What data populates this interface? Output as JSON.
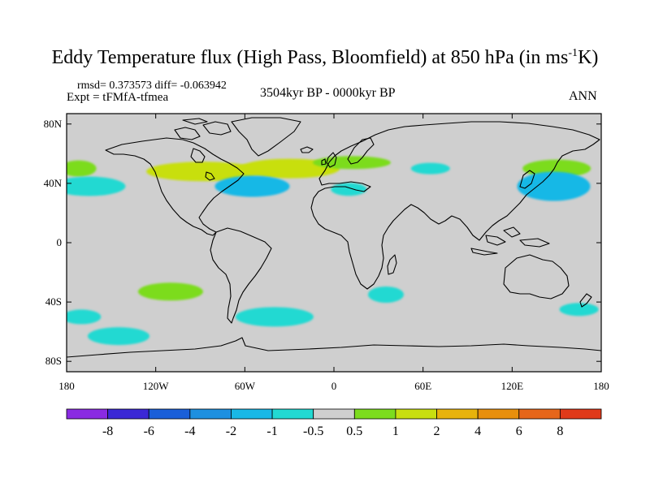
{
  "title": {
    "main": "Eddy Temperature flux (High Pass, Bloomfield) at 850 hPa (in ms",
    "sup": "-1",
    "tail": "K)"
  },
  "stats": "rmsd= 0.373573 diff= -0.063942",
  "expt": "Expt = tFMfA-tfmea",
  "period": "3504kyr BP - 0000kyr BP",
  "season": "ANN",
  "axes": {
    "lat_labels": [
      "80N",
      "40N",
      "0",
      "40S",
      "80S"
    ],
    "lat_values": [
      80,
      40,
      0,
      -40,
      -80
    ],
    "lon_labels": [
      "180",
      "120W",
      "60W",
      "0",
      "60E",
      "120E",
      "180"
    ],
    "lon_values": [
      -180,
      -120,
      -60,
      0,
      60,
      120,
      180
    ]
  },
  "colorbar": {
    "colors": [
      "#8a2be2",
      "#3b28d6",
      "#1a5fd9",
      "#1e90e0",
      "#19b8e6",
      "#22d9d2",
      "#cfcfcf",
      "#7cdc1e",
      "#c8df10",
      "#e8b30c",
      "#e88f0c",
      "#e6661a",
      "#e03a1a"
    ],
    "labels": [
      "-8",
      "-6",
      "-4",
      "-2",
      "-1",
      "-0.5",
      "0.5",
      "1",
      "2",
      "4",
      "6",
      "8"
    ]
  },
  "chart_data": {
    "type": "map",
    "variable": "Eddy Temperature flux (High Pass, Bloomfield) at 850 hPa",
    "units": "ms-1K",
    "background_class": "-0.5 to 0.5",
    "regions": [
      {
        "name": "north-pacific-west-positive",
        "class": "0.5 to 1",
        "lat": 50,
        "lon": -172,
        "color": "#7cdc1e"
      },
      {
        "name": "north-america-positive",
        "class": "1 to 2",
        "lat": 48,
        "lon": -88,
        "color": "#c8df10"
      },
      {
        "name": "north-atlantic-positive",
        "class": "1 to 2",
        "lat": 50,
        "lon": -30,
        "color": "#c8df10"
      },
      {
        "name": "europe-positive",
        "class": "0.5 to 1",
        "lat": 54,
        "lon": 12,
        "color": "#7cdc1e"
      },
      {
        "name": "north-pacific-east-positive",
        "class": "0.5 to 1",
        "lat": 50,
        "lon": 150,
        "color": "#7cdc1e"
      },
      {
        "name": "south-pacific-positive",
        "class": "0.5 to 1",
        "lat": -33,
        "lon": -110,
        "color": "#7cdc1e"
      },
      {
        "name": "pacific-40n-negative",
        "class": "-1 to -0.5",
        "lat": 38,
        "lon": -165,
        "color": "#22d9d2"
      },
      {
        "name": "atlantic-40n-negative",
        "class": "-2 to -1",
        "lat": 38,
        "lon": -55,
        "color": "#19b8e6"
      },
      {
        "name": "mediterranean-negative",
        "class": "-1 to -0.5",
        "lat": 36,
        "lon": 10,
        "color": "#22d9d2"
      },
      {
        "name": "central-asia-negative",
        "class": "-1 to -0.5",
        "lat": 50,
        "lon": 65,
        "color": "#22d9d2"
      },
      {
        "name": "west-pacific-40n-negative",
        "class": "-2 to -1",
        "lat": 38,
        "lon": 148,
        "color": "#19b8e6"
      },
      {
        "name": "south-africa-negative",
        "class": "-1 to -0.5",
        "lat": -35,
        "lon": 35,
        "color": "#22d9d2"
      },
      {
        "name": "south-pacific-50s-negative",
        "class": "-1 to -0.5",
        "lat": -50,
        "lon": -170,
        "color": "#22d9d2"
      },
      {
        "name": "southern-ocean-65s-negative",
        "class": "-1 to -0.5",
        "lat": -63,
        "lon": -145,
        "color": "#22d9d2"
      },
      {
        "name": "south-atlantic-negative",
        "class": "-1 to -0.5",
        "lat": -50,
        "lon": -40,
        "color": "#22d9d2"
      },
      {
        "name": "australia-south-negative",
        "class": "-1 to -0.5",
        "lat": -45,
        "lon": 165,
        "color": "#22d9d2"
      }
    ]
  }
}
